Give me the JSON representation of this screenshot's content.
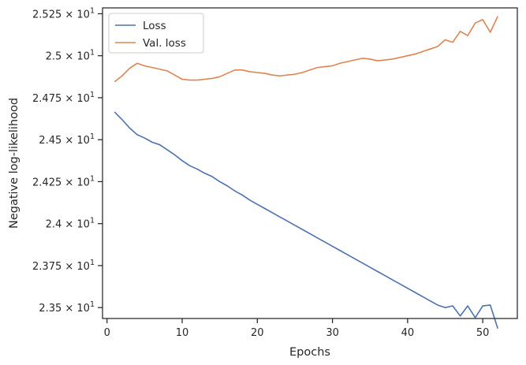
{
  "chart_data": {
    "type": "line",
    "title": "",
    "xlabel": "Epochs",
    "ylabel": "Negative log-likelihood",
    "xlim": [
      -0.6,
      54.6
    ],
    "ylim": [
      23.435,
      25.285
    ],
    "xticks": [
      0,
      10,
      20,
      30,
      40,
      50
    ],
    "xtick_labels": [
      "0",
      "10",
      "20",
      "30",
      "40",
      "50"
    ],
    "yticks": [
      {
        "value": 23.5,
        "mantissa": "2.35",
        "exp": "1"
      },
      {
        "value": 23.75,
        "mantissa": "2.375",
        "exp": "1"
      },
      {
        "value": 24.0,
        "mantissa": "2.4",
        "exp": "1"
      },
      {
        "value": 24.25,
        "mantissa": "2.425",
        "exp": "1"
      },
      {
        "value": 24.5,
        "mantissa": "2.45",
        "exp": "1"
      },
      {
        "value": 24.75,
        "mantissa": "2.475",
        "exp": "1"
      },
      {
        "value": 25.0,
        "mantissa": "2.5",
        "exp": "1"
      },
      {
        "value": 25.25,
        "mantissa": "2.525",
        "exp": "1"
      }
    ],
    "ytick_base_text": "× 10",
    "grid": false,
    "legend_position": "upper-left",
    "series": [
      {
        "name": "Loss",
        "color": "#4c72b0",
        "x": [
          1,
          2,
          3,
          4,
          5,
          6,
          7,
          8,
          9,
          10,
          11,
          12,
          13,
          14,
          15,
          16,
          17,
          18,
          19,
          20,
          21,
          22,
          23,
          24,
          25,
          26,
          27,
          28,
          29,
          30,
          31,
          32,
          33,
          34,
          35,
          36,
          37,
          38,
          39,
          40,
          41,
          42,
          43,
          44,
          45,
          46,
          47,
          48,
          49,
          50,
          51,
          52
        ],
        "y": [
          24.665,
          24.62,
          24.57,
          24.53,
          24.51,
          24.485,
          24.47,
          24.44,
          24.41,
          24.375,
          24.345,
          24.325,
          24.3,
          24.28,
          24.25,
          24.225,
          24.195,
          24.17,
          24.14,
          24.115,
          24.09,
          24.065,
          24.04,
          24.015,
          23.99,
          23.965,
          23.94,
          23.915,
          23.89,
          23.865,
          23.84,
          23.815,
          23.79,
          23.765,
          23.74,
          23.715,
          23.69,
          23.665,
          23.64,
          23.615,
          23.59,
          23.565,
          23.54,
          23.515,
          23.5,
          23.51,
          23.45,
          23.51,
          23.44,
          23.51,
          23.515,
          23.375
        ]
      },
      {
        "name": "Val. loss",
        "color": "#dd8452",
        "x": [
          1,
          2,
          3,
          4,
          5,
          6,
          7,
          8,
          9,
          10,
          11,
          12,
          13,
          14,
          15,
          16,
          17,
          18,
          19,
          20,
          21,
          22,
          23,
          24,
          25,
          26,
          27,
          28,
          29,
          30,
          31,
          32,
          33,
          34,
          35,
          36,
          37,
          38,
          39,
          40,
          41,
          42,
          43,
          44,
          45,
          46,
          47,
          48,
          49,
          50,
          51,
          52
        ],
        "y": [
          24.845,
          24.88,
          24.925,
          24.955,
          24.94,
          24.93,
          24.92,
          24.91,
          24.885,
          24.86,
          24.855,
          24.855,
          24.86,
          24.865,
          24.875,
          24.895,
          24.915,
          24.915,
          24.905,
          24.9,
          24.895,
          24.885,
          24.88,
          24.885,
          24.89,
          24.9,
          24.915,
          24.93,
          24.935,
          24.94,
          24.955,
          24.965,
          24.975,
          24.985,
          24.98,
          24.97,
          24.975,
          24.98,
          24.99,
          25.0,
          25.01,
          25.025,
          25.04,
          25.055,
          25.095,
          25.08,
          25.145,
          25.12,
          25.195,
          25.215,
          25.14,
          25.235
        ]
      }
    ]
  }
}
